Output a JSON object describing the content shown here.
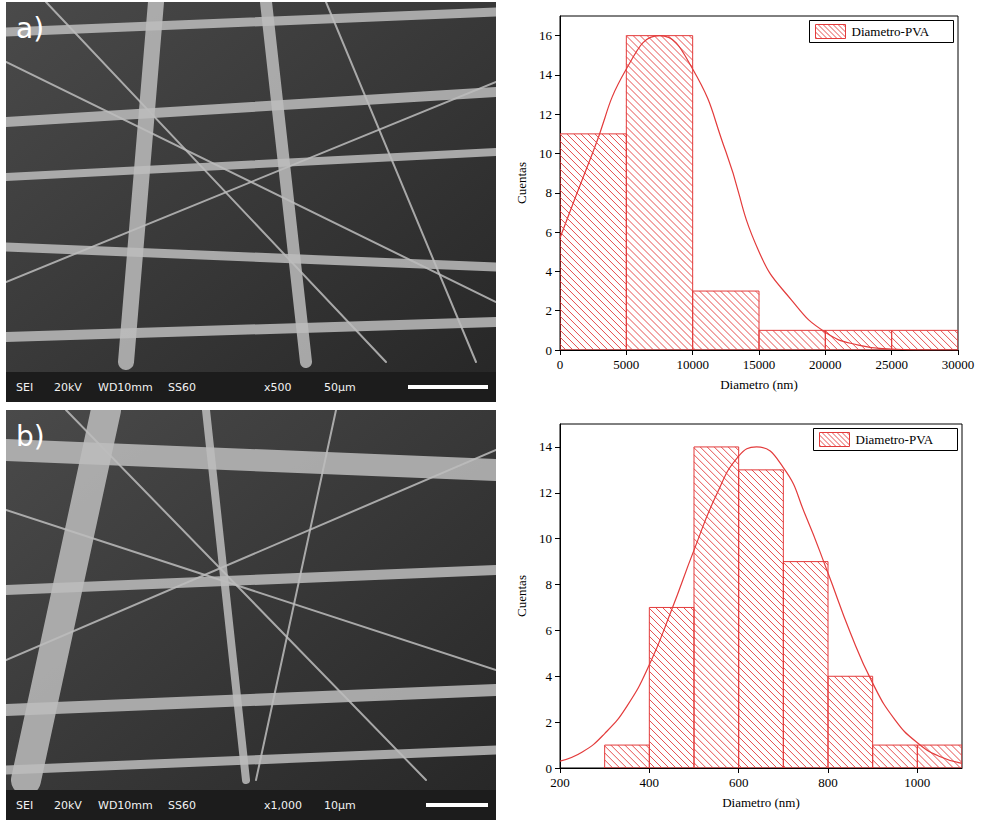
{
  "chart_data": [
    {
      "type": "histogram",
      "bins": [
        0,
        5000,
        10000,
        15000,
        20000,
        25000,
        30000
      ],
      "values": [
        11,
        16,
        3,
        1,
        1,
        1
      ],
      "series_name": "Diametro-PVA",
      "color": "#e33b3b",
      "curve": {
        "type": "line",
        "x": [
          0,
          2500,
          5000,
          7500,
          10000,
          12500,
          15000,
          17500,
          20000,
          22500,
          25000,
          27500,
          30000
        ],
        "values": [
          5.7,
          10.1,
          14.3,
          16,
          14.3,
          10.1,
          5.0,
          2.5,
          0.9,
          0.25,
          0.05,
          0,
          0
        ]
      },
      "x_label": "Diametro (nm)",
      "y_label": "Cuentas",
      "xlim": [
        0,
        30000
      ],
      "xticks": [
        0,
        5000,
        10000,
        15000,
        20000,
        25000,
        30000
      ],
      "ylim": [
        0,
        17
      ],
      "yticks": [
        0,
        2,
        4,
        6,
        8,
        10,
        12,
        14,
        16
      ],
      "grid": false,
      "legend": "upper right"
    },
    {
      "type": "histogram",
      "bins": [
        300,
        400,
        500,
        600,
        700,
        800,
        900,
        1000,
        1100
      ],
      "values": [
        1,
        7,
        14,
        13,
        9,
        4,
        1,
        1
      ],
      "series_name": "Diametro-PVA",
      "color": "#e33b3b",
      "curve": {
        "type": "line",
        "x": [
          200,
          250,
          300,
          350,
          400,
          450,
          500,
          550,
          600,
          640,
          700,
          750,
          800,
          850,
          900,
          950,
          1000,
          1050,
          1100
        ],
        "values": [
          0.3,
          0.7,
          1.5,
          2.7,
          4.5,
          6.9,
          9.5,
          11.9,
          13.6,
          14,
          13.1,
          11.0,
          8.5,
          5.9,
          3.7,
          2.1,
          1.1,
          0.5,
          0.2
        ]
      },
      "x_label": "Diametro (nm)",
      "y_label": "Cuentas",
      "xlim": [
        200,
        1100
      ],
      "xticks": [
        200,
        400,
        600,
        800,
        1000
      ],
      "ylim": [
        0,
        15
      ],
      "yticks": [
        0,
        2,
        4,
        6,
        8,
        10,
        12,
        14
      ],
      "grid": false,
      "legend": "upper right"
    }
  ],
  "micrographs": [
    {
      "letter": "a)",
      "labels": [
        "SEI",
        "20kV",
        "WD10mm",
        "SS60",
        "x500",
        "50μm"
      ]
    },
    {
      "letter": "b)",
      "labels": [
        "SEI",
        "20kV",
        "WD10mm",
        "SS60",
        "x1,000",
        "10μm"
      ]
    }
  ]
}
